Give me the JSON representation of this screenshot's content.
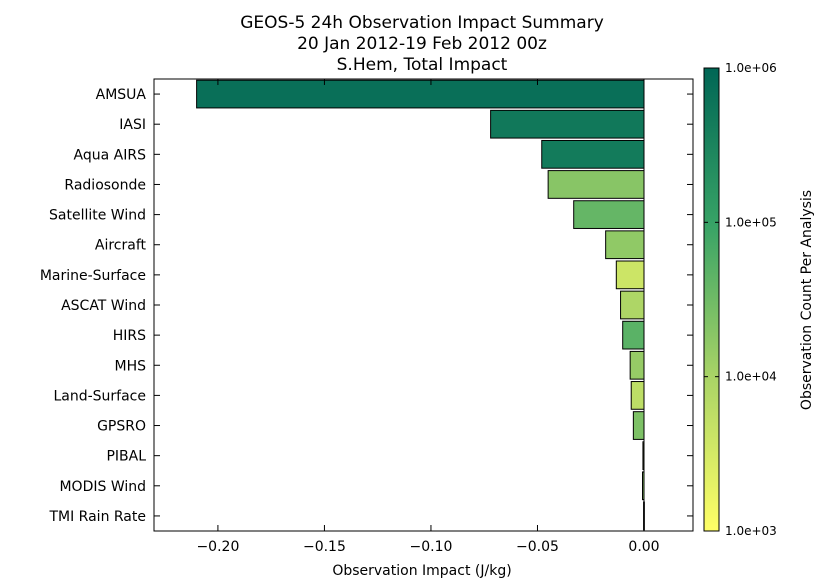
{
  "chart_data": {
    "type": "bar",
    "orientation": "horizontal",
    "title": [
      "GEOS-5 24h Observation Impact Summary",
      "20 Jan 2012-19 Feb 2012 00z",
      "S.Hem, Total Impact"
    ],
    "xlabel": "Observation Impact (J/kg)",
    "ylabel": "",
    "xlim": [
      -0.23,
      0.023
    ],
    "xticks": [
      -0.2,
      -0.15,
      -0.1,
      -0.05,
      0.0
    ],
    "xtick_labels": [
      "−0.20",
      "−0.15",
      "−0.10",
      "−0.05",
      "0.00"
    ],
    "categories": [
      "AMSUA",
      "IASI",
      "Aqua AIRS",
      "Radiosonde",
      "Satellite Wind",
      "Aircraft",
      "Marine-Surface",
      "ASCAT Wind",
      "HIRS",
      "MHS",
      "Land-Surface",
      "GPSRO",
      "PIBAL",
      "MODIS Wind",
      "TMI Rain Rate"
    ],
    "values": [
      -0.21,
      -0.072,
      -0.048,
      -0.045,
      -0.033,
      -0.018,
      -0.013,
      -0.011,
      -0.01,
      -0.0065,
      -0.006,
      -0.005,
      -0.0005,
      -0.0007,
      -0.0002
    ],
    "counts": [
      700000,
      500000,
      450000,
      20000,
      40000,
      17000,
      4000,
      9000,
      50000,
      15000,
      6000,
      25000,
      7000,
      20000,
      3000
    ],
    "colorbar": {
      "label": "Observation Count Per Analysis",
      "scale": "log",
      "range": [
        1000,
        1000000
      ],
      "tick_labels": [
        "1.0e+06",
        "1.0e+05",
        "1.0e+04",
        "1.0e+03"
      ],
      "tick_values": [
        1000000,
        100000,
        10000,
        1000
      ],
      "colors": [
        "#ffff66",
        "#aad466",
        "#38a366",
        "#006655"
      ]
    },
    "grid": false
  }
}
